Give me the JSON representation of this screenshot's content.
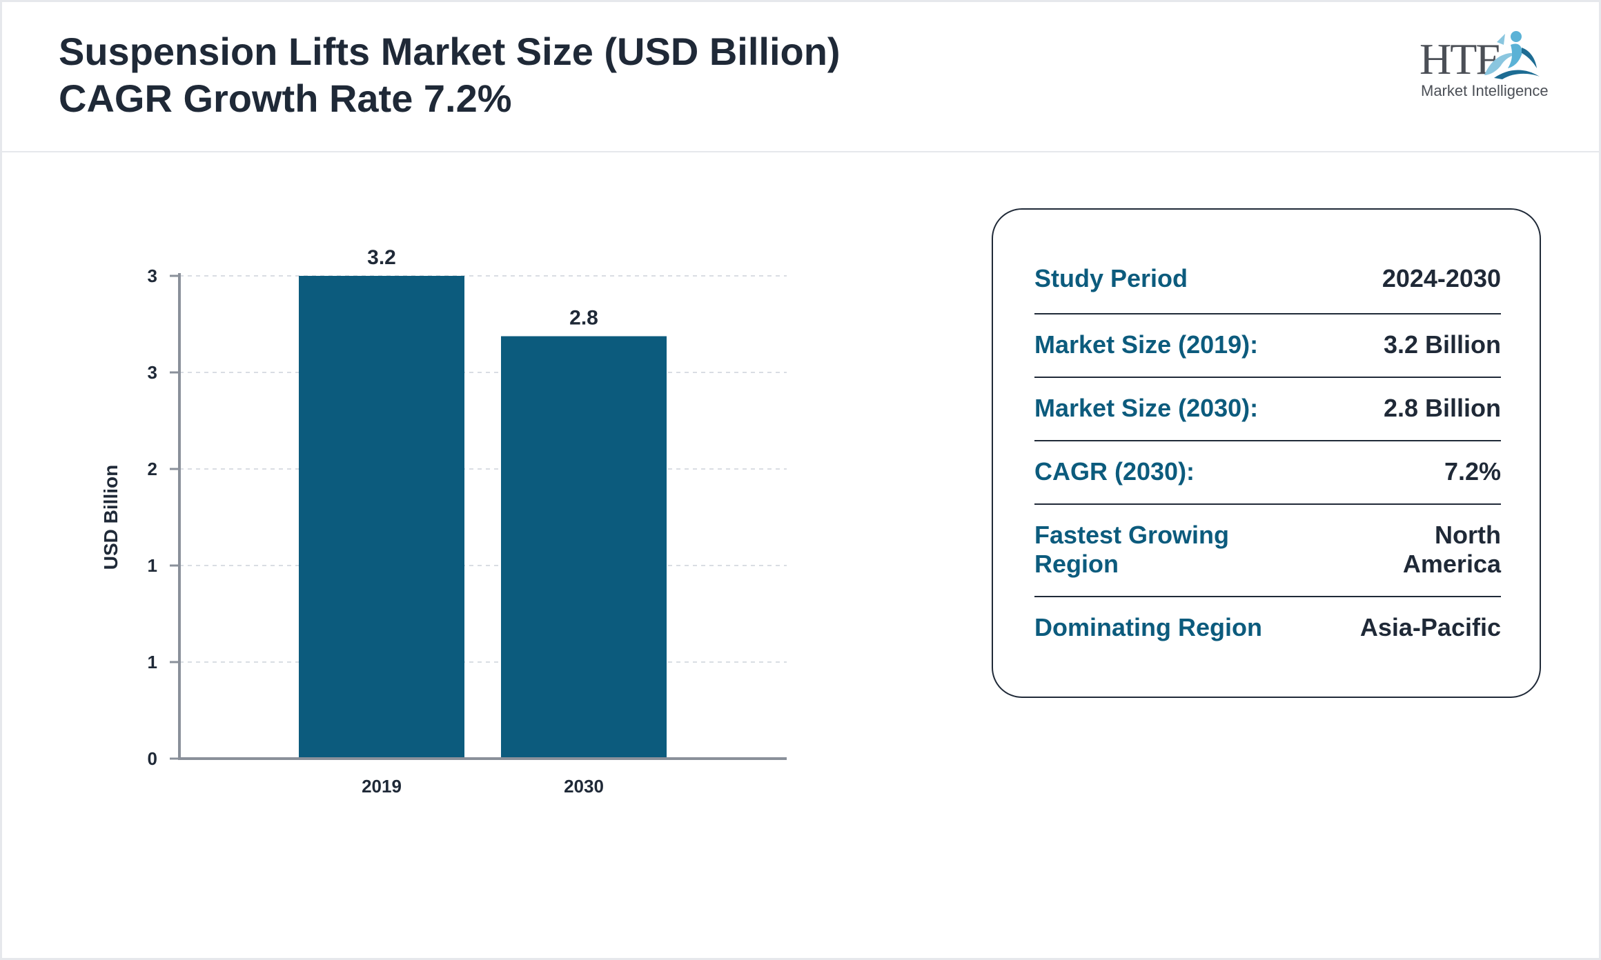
{
  "header": {
    "title_line1": "Suspension Lifts Market Size (USD Billion)",
    "title_line2": "CAGR Growth Rate 7.2%"
  },
  "logo": {
    "wordmark": "HTF",
    "subtitle": "Market Intelligence",
    "icon": "htf-swirl-figure-icon",
    "colors": [
      "#5bb2d6",
      "#1d6c93",
      "#8ac6df"
    ]
  },
  "chart_data": {
    "type": "bar",
    "categories": [
      "2019",
      "2030"
    ],
    "values": [
      3.2,
      2.8
    ],
    "data_labels": [
      "3.2",
      "2.8"
    ],
    "ylabel": "USD Billion",
    "y_ticks": [
      {
        "value": 0,
        "label": "0"
      },
      {
        "value": 0.64,
        "label": "1"
      },
      {
        "value": 1.28,
        "label": "1"
      },
      {
        "value": 1.92,
        "label": "2"
      },
      {
        "value": 2.56,
        "label": "3"
      },
      {
        "value": 3.2,
        "label": "3"
      }
    ],
    "ylim": [
      0,
      3.2
    ],
    "grid": true,
    "bar_color": "#0c5b7d"
  },
  "info": {
    "rows": [
      {
        "label": "Study Period",
        "value": "2024-2030"
      },
      {
        "label": "Market Size (2019):",
        "value": "3.2 Billion"
      },
      {
        "label": "Market Size (2030):",
        "value": "2.8 Billion"
      },
      {
        "label": "CAGR (2030):",
        "value": "7.2%"
      },
      {
        "label": "Fastest Growing\nRegion",
        "value": "North\nAmerica"
      },
      {
        "label": "Dominating Region",
        "value": "Asia-Pacific"
      }
    ]
  }
}
